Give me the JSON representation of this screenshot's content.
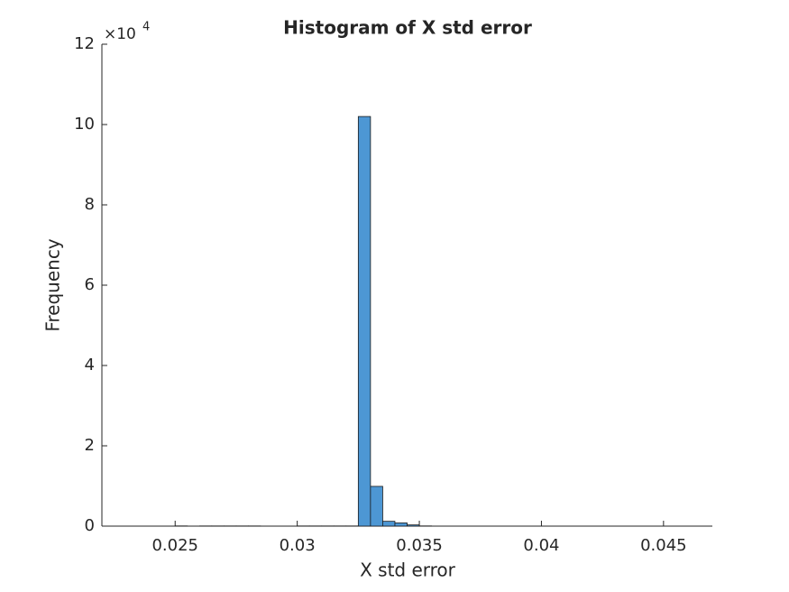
{
  "chart_data": {
    "type": "histogram",
    "title": "Histogram of X std error",
    "x_label": "X std error",
    "y_label": "Frequency",
    "y_multiplier": {
      "base": "×10",
      "exponent": "4"
    },
    "bins": [
      0.0225,
      0.023,
      0.0235,
      0.024,
      0.0245,
      0.025,
      0.0255,
      0.026,
      0.0265,
      0.027,
      0.0275,
      0.028,
      0.0285,
      0.029,
      0.0295,
      0.03,
      0.0305,
      0.031,
      0.0315,
      0.032,
      0.0325,
      0.033,
      0.0335,
      0.034,
      0.0345,
      0.035,
      0.0355,
      0.036,
      0.0365,
      0.037,
      0.0375,
      0.038,
      0.0385,
      0.039,
      0.0395,
      0.04,
      0.0405,
      0.041,
      0.0415,
      0.042,
      0.0425,
      0.043,
      0.0435,
      0.044,
      0.0445,
      0.045,
      0.0455,
      0.046,
      0.0465,
      0.047
    ],
    "values": [
      0,
      0,
      0,
      0,
      0,
      50,
      0,
      40,
      40,
      40,
      40,
      40,
      0,
      0,
      0,
      40,
      40,
      40,
      40,
      40,
      102000,
      9900,
      1200,
      800,
      300,
      50,
      0,
      0,
      0,
      0,
      0,
      0,
      0,
      0,
      0,
      0,
      0,
      0,
      0,
      0,
      0,
      0,
      0,
      0,
      0,
      0,
      0,
      0,
      0
    ],
    "color": "#4d97d4",
    "edge_color": "#1a1a1a",
    "xlim": [
      0.022,
      0.047
    ],
    "xticks": [
      0.025,
      0.03,
      0.035,
      0.04,
      0.045
    ],
    "ylim": [
      0,
      120000
    ],
    "yticks": [
      {
        "value": 0,
        "label": "0"
      },
      {
        "value": 20000,
        "label": "2"
      },
      {
        "value": 40000,
        "label": "4"
      },
      {
        "value": 60000,
        "label": "6"
      },
      {
        "value": 80000,
        "label": "8"
      },
      {
        "value": 100000,
        "label": "10"
      },
      {
        "value": 120000,
        "label": "12"
      }
    ],
    "grid": false
  }
}
